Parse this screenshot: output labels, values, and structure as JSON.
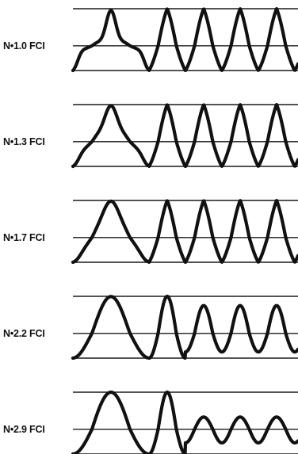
{
  "figure": {
    "panels": [
      {
        "label": "N•1.0 FCI",
        "sharpness": 7.0
      },
      {
        "label": "N•1.3 FCI",
        "sharpness": 5.0
      },
      {
        "label": "N•1.7 FCI",
        "sharpness": 3.5
      },
      {
        "label": "N•2.2 FCI",
        "sharpness": 1.8
      },
      {
        "label": "N•2.9 FCI",
        "sharpness": 0.9
      }
    ]
  }
}
